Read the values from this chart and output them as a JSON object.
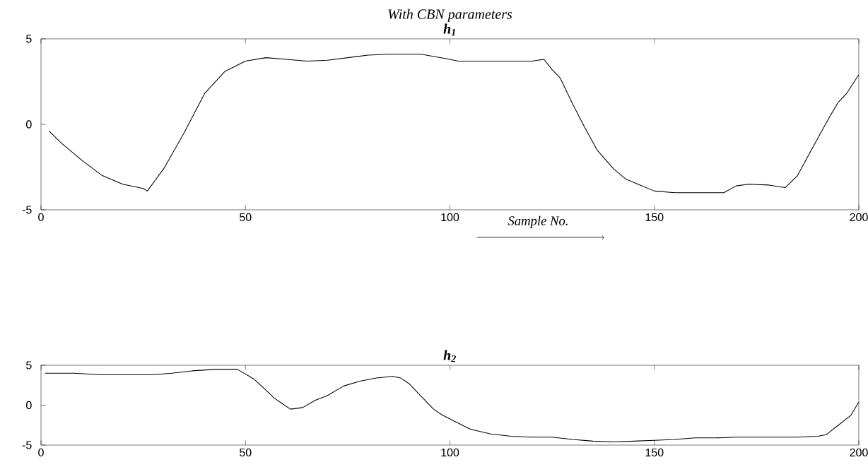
{
  "chart_data": [
    {
      "type": "line",
      "title": "With CBN parameters",
      "subtitle": "h$_{1}$",
      "xlabel": "Sample No.",
      "xlim": [
        0,
        200
      ],
      "ylim": [
        -5,
        5
      ],
      "xticks": [
        0,
        50,
        100,
        150,
        200
      ],
      "yticks": [
        -5,
        0,
        5
      ],
      "grid": false,
      "marker": "none",
      "line_style": "solid",
      "series": [
        {
          "color": "#000000",
          "x": [
            2,
            5,
            10,
            15,
            20,
            25,
            26,
            30,
            35,
            40,
            45,
            50,
            55,
            60,
            65,
            70,
            75,
            80,
            85,
            90,
            93,
            100,
            102,
            110,
            120,
            123,
            125,
            127,
            130,
            133,
            136,
            140,
            143,
            146,
            150,
            155,
            160,
            165,
            167,
            170,
            173,
            178,
            182,
            185,
            190,
            193,
            195,
            197,
            200
          ],
          "values": [
            -0.4,
            -1.1,
            -2.1,
            -3.0,
            -3.5,
            -3.75,
            -3.9,
            -2.6,
            -0.5,
            1.8,
            3.1,
            3.7,
            3.9,
            3.8,
            3.7,
            3.75,
            3.9,
            4.05,
            4.1,
            4.1,
            4.1,
            3.8,
            3.7,
            3.7,
            3.7,
            3.8,
            3.2,
            2.7,
            1.2,
            -0.2,
            -1.5,
            -2.6,
            -3.2,
            -3.5,
            -3.9,
            -4.0,
            -4.0,
            -4.0,
            -4.0,
            -3.6,
            -3.5,
            -3.55,
            -3.7,
            -3.0,
            -0.8,
            0.5,
            1.3,
            1.8,
            2.9
          ]
        }
      ]
    },
    {
      "type": "line",
      "title": "h$_{2}$",
      "xlim": [
        0,
        200
      ],
      "ylim": [
        -5,
        5
      ],
      "xticks": [
        0,
        50,
        100,
        150,
        200
      ],
      "yticks": [
        -5,
        0,
        5
      ],
      "grid": false,
      "marker": "none",
      "line_style": "solid",
      "series": [
        {
          "color": "#000000",
          "x": [
            1,
            8,
            15,
            27,
            32,
            37,
            43,
            48,
            50,
            52,
            55,
            57,
            59,
            61,
            64,
            67,
            70,
            74,
            78,
            82,
            86,
            88,
            90,
            93,
            96,
            98,
            103,
            105,
            110,
            115,
            120,
            125,
            130,
            135,
            140,
            145,
            150,
            155,
            160,
            165,
            170,
            175,
            182,
            185,
            190,
            192,
            195,
            198,
            200
          ],
          "values": [
            4.0,
            4.0,
            3.8,
            3.8,
            4.0,
            4.3,
            4.5,
            4.5,
            3.9,
            3.3,
            1.9,
            0.9,
            0.2,
            -0.5,
            -0.3,
            0.6,
            1.2,
            2.4,
            3.0,
            3.4,
            3.6,
            3.4,
            2.7,
            1.1,
            -0.5,
            -1.2,
            -2.5,
            -3.0,
            -3.6,
            -3.9,
            -4.0,
            -4.0,
            -4.3,
            -4.5,
            -4.6,
            -4.5,
            -4.4,
            -4.3,
            -4.1,
            -4.1,
            -4.0,
            -4.0,
            -4.0,
            -4.0,
            -3.9,
            -3.7,
            -2.5,
            -1.3,
            0.4
          ]
        }
      ]
    }
  ]
}
